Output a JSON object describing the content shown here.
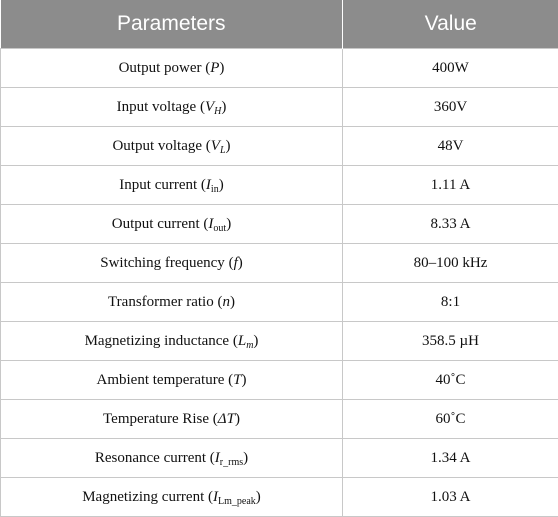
{
  "headers": [
    "Parameters",
    "Value"
  ],
  "rows": [
    {
      "name": "Output power",
      "sym": "P",
      "sub": "",
      "value": "400W"
    },
    {
      "name": "Input voltage",
      "sym": "V",
      "sub": "H",
      "value": "360V"
    },
    {
      "name": "Output voltage",
      "sym": "V",
      "sub": "L",
      "value": "48V"
    },
    {
      "name": "Input current",
      "sym": "I",
      "sub": "in",
      "value": "1.11 A"
    },
    {
      "name": "Output current",
      "sym": "I",
      "sub": "out",
      "value": "8.33 A"
    },
    {
      "name": "Switching frequency",
      "sym": "f",
      "sub": "",
      "value": "80–100 kHz"
    },
    {
      "name": "Transformer ratio",
      "sym": "n",
      "sub": "",
      "value": "8:1"
    },
    {
      "name": "Magnetizing inductance",
      "sym": "L",
      "sub": "m",
      "value": "358.5 µH"
    },
    {
      "name": "Ambient temperature",
      "sym": "T",
      "sub": "",
      "value": "40˚C"
    },
    {
      "name": "Temperature Rise",
      "sym": "ΔT",
      "sub": "",
      "value": "60˚C"
    },
    {
      "name": "Resonance current",
      "sym": "I",
      "sub": "r_rms",
      "value": "1.34 A"
    },
    {
      "name": "Magnetizing current",
      "sym": "I",
      "sub": "Lm_peak",
      "value": "1.03 A"
    }
  ]
}
